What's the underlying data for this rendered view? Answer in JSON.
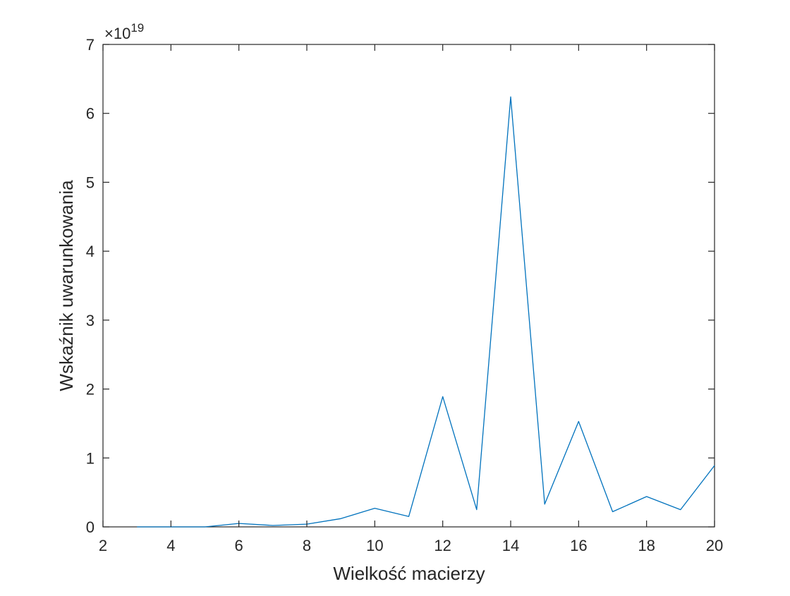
{
  "chart_data": {
    "type": "line",
    "title": "",
    "xlabel": "Wielkość macierzy",
    "ylabel": "Wskaźnik uwarunkowania",
    "y_exponent_base": "×10",
    "y_exponent_power": "19",
    "xlim": [
      2,
      20
    ],
    "ylim": [
      0,
      7
    ],
    "x_ticks": [
      2,
      4,
      6,
      8,
      10,
      12,
      14,
      16,
      18,
      20
    ],
    "y_ticks": [
      0,
      1,
      2,
      3,
      4,
      5,
      6,
      7
    ],
    "grid": false,
    "series": [
      {
        "x": [
          3,
          4,
          5,
          6,
          7,
          8,
          9,
          10,
          11,
          12,
          13,
          14,
          15,
          16,
          17,
          18,
          19,
          20
        ],
        "y": [
          0.0,
          0.0,
          0.0,
          0.05,
          0.02,
          0.04,
          0.12,
          0.27,
          0.15,
          1.89,
          0.25,
          6.24,
          0.33,
          1.53,
          0.22,
          0.44,
          0.25,
          0.89
        ],
        "color": "#0072BD"
      }
    ]
  }
}
